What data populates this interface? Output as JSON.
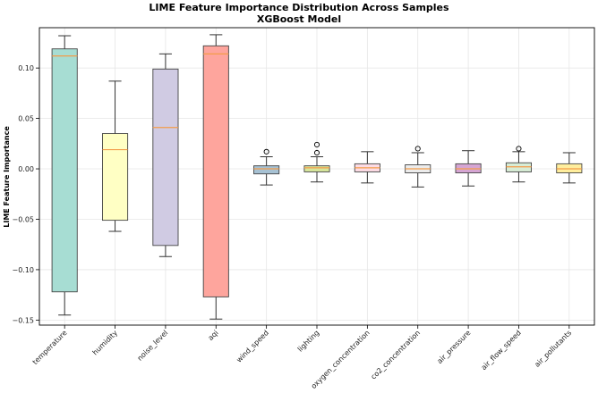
{
  "chart_data": {
    "type": "box",
    "title": "LIME Feature Importance Distribution Across Samples",
    "subtitle": "XGBoost Model",
    "xlabel": "",
    "ylabel": "LIME Feature Importance",
    "ylim": [
      -0.155,
      0.14
    ],
    "yticks": [
      0.1,
      0.05,
      0.0,
      -0.05,
      -0.1,
      -0.15
    ],
    "ytick_labels": [
      "0.10",
      "0.05",
      "0.00",
      "−0.05",
      "−0.10",
      "−0.15"
    ],
    "grid": true,
    "categories": [
      "temperature",
      "humidity",
      "noise_level",
      "aqi",
      "wind_speed",
      "lighting",
      "oxygen_concentration",
      "co2_concentration",
      "air_pressure",
      "air_flow_speed",
      "air_pollutants"
    ],
    "boxes": [
      {
        "name": "temperature",
        "whisker_low": -0.145,
        "q1": -0.122,
        "median": 0.112,
        "q3": 0.119,
        "whisker_high": 0.132,
        "fliers": [],
        "color": "#a7ddd3"
      },
      {
        "name": "humidity",
        "whisker_low": -0.062,
        "q1": -0.051,
        "median": 0.019,
        "q3": 0.035,
        "whisker_high": 0.087,
        "fliers": [],
        "color": "#ffffc4"
      },
      {
        "name": "noise_level",
        "whisker_low": -0.087,
        "q1": -0.076,
        "median": 0.041,
        "q3": 0.099,
        "whisker_high": 0.114,
        "fliers": [],
        "color": "#d0cbe3"
      },
      {
        "name": "aqi",
        "whisker_low": -0.149,
        "q1": -0.127,
        "median": 0.114,
        "q3": 0.122,
        "whisker_high": 0.133,
        "fliers": [],
        "color": "#fea59d"
      },
      {
        "name": "wind_speed",
        "whisker_low": -0.016,
        "q1": -0.005,
        "median": 0.0,
        "q3": 0.003,
        "whisker_high": 0.012,
        "fliers": [
          0.017
        ],
        "color": "#a6c1d3"
      },
      {
        "name": "lighting",
        "whisker_low": -0.013,
        "q1": -0.003,
        "median": 0.001,
        "q3": 0.003,
        "whisker_high": 0.012,
        "fliers": [
          0.016,
          0.024
        ],
        "color": "#d6e69c"
      },
      {
        "name": "oxygen_concentration",
        "whisker_low": -0.014,
        "q1": -0.003,
        "median": 0.001,
        "q3": 0.005,
        "whisker_high": 0.017,
        "fliers": [],
        "color": "#fcdbe4"
      },
      {
        "name": "co2_concentration",
        "whisker_low": -0.018,
        "q1": -0.004,
        "median": 0.0,
        "q3": 0.004,
        "whisker_high": 0.016,
        "fliers": [
          0.02
        ],
        "color": "#ececec"
      },
      {
        "name": "air_pressure",
        "whisker_low": -0.017,
        "q1": -0.004,
        "median": 0.0,
        "q3": 0.005,
        "whisker_high": 0.018,
        "fliers": [],
        "color": "#d5a5d3"
      },
      {
        "name": "air_flow_speed",
        "whisker_low": -0.013,
        "q1": -0.003,
        "median": 0.002,
        "q3": 0.006,
        "whisker_high": 0.017,
        "fliers": [
          0.02
        ],
        "color": "#d7ecd5"
      },
      {
        "name": "air_pollutants",
        "whisker_low": -0.014,
        "q1": -0.004,
        "median": 0.0,
        "q3": 0.005,
        "whisker_high": 0.016,
        "fliers": [],
        "color": "#ffee9d"
      }
    ]
  }
}
